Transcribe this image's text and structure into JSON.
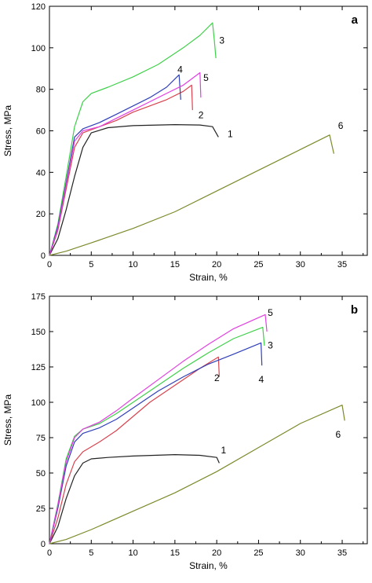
{
  "chart_data": [
    {
      "type": "line",
      "panel": "a",
      "xlabel": "Strain, %",
      "ylabel": "Stress, MPa",
      "xlim": [
        0,
        38
      ],
      "ylim": [
        0,
        120
      ],
      "xticks": [
        0,
        5,
        10,
        15,
        20,
        25,
        30,
        35
      ],
      "yticks": [
        0,
        20,
        40,
        60,
        80,
        100,
        120
      ],
      "grid": false,
      "series": [
        {
          "name": "1",
          "color": "#222222",
          "x": [
            0,
            1,
            2,
            3,
            4,
            5,
            7,
            10,
            15,
            18,
            19.5,
            20.2
          ],
          "y": [
            0,
            8,
            22,
            38,
            52,
            59,
            61.5,
            62.5,
            63,
            62.8,
            62,
            57
          ]
        },
        {
          "name": "2",
          "color": "#d8434f",
          "x": [
            0,
            1,
            2,
            3,
            4,
            6,
            8,
            10,
            12,
            14,
            16,
            17,
            17.1
          ],
          "y": [
            0,
            12,
            32,
            52,
            59,
            62,
            65,
            69,
            72,
            75,
            79,
            82,
            70
          ]
        },
        {
          "name": "3",
          "color": "#3fd04a",
          "x": [
            0,
            1,
            2,
            3,
            4,
            5,
            7,
            10,
            13,
            16,
            18,
            19.5,
            19.7,
            19.9
          ],
          "y": [
            0,
            15,
            38,
            62,
            74,
            78,
            81,
            86,
            92,
            100,
            106,
            112,
            104,
            95
          ]
        },
        {
          "name": "4",
          "color": "#2f3fb8",
          "x": [
            0,
            1,
            2,
            3,
            4,
            6,
            8,
            10,
            12,
            14,
            15.5,
            15.7
          ],
          "y": [
            0,
            14,
            35,
            57,
            61,
            64,
            68,
            72,
            76,
            81,
            87,
            75
          ]
        },
        {
          "name": "5",
          "color": "#e040e0",
          "x": [
            0,
            1,
            2,
            3,
            4,
            6,
            8,
            10,
            12,
            14,
            16,
            18,
            18.1
          ],
          "y": [
            0,
            13,
            34,
            55,
            60,
            62,
            66,
            70,
            74,
            78,
            82,
            88,
            76
          ]
        },
        {
          "name": "6",
          "color": "#7d8a2b",
          "x": [
            0,
            2,
            5,
            10,
            15,
            20,
            25,
            30,
            33.5,
            34
          ],
          "y": [
            0,
            2,
            6,
            13,
            21,
            31,
            41,
            51,
            58,
            49
          ]
        }
      ],
      "curve_labels": [
        {
          "text": "1",
          "x": 21.3,
          "y": 57
        },
        {
          "text": "2",
          "x": 17.8,
          "y": 66
        },
        {
          "text": "3",
          "x": 20.3,
          "y": 102
        },
        {
          "text": "4",
          "x": 15.3,
          "y": 88
        },
        {
          "text": "5",
          "x": 18.4,
          "y": 84
        },
        {
          "text": "6",
          "x": 34.5,
          "y": 61
        }
      ]
    },
    {
      "type": "line",
      "panel": "b",
      "xlabel": "Strain, %",
      "ylabel": "Stress, MPa",
      "xlim": [
        0,
        38
      ],
      "ylim": [
        0,
        175
      ],
      "xticks": [
        0,
        5,
        10,
        15,
        20,
        25,
        30,
        35
      ],
      "yticks": [
        0,
        25,
        50,
        75,
        100,
        125,
        150,
        175
      ],
      "grid": false,
      "series": [
        {
          "name": "1",
          "color": "#222222",
          "x": [
            0,
            1,
            2,
            3,
            4,
            5,
            7,
            10,
            15,
            18,
            20,
            20.3
          ],
          "y": [
            0,
            12,
            32,
            48,
            57,
            60,
            61,
            62,
            63,
            62.5,
            61,
            57
          ]
        },
        {
          "name": "2",
          "color": "#d8434f",
          "x": [
            0,
            1,
            2,
            3,
            4,
            6,
            8,
            10,
            12,
            15,
            18,
            20.2,
            20.3
          ],
          "y": [
            0,
            18,
            42,
            58,
            65,
            72,
            80,
            90,
            100,
            112,
            124,
            132,
            118
          ]
        },
        {
          "name": "3",
          "color": "#3fd04a",
          "x": [
            0,
            1,
            2,
            3,
            4,
            6,
            8,
            10,
            13,
            16,
            19,
            22,
            25.5,
            25.7
          ],
          "y": [
            0,
            28,
            60,
            76,
            81,
            85,
            92,
            100,
            112,
            124,
            135,
            145,
            153,
            140
          ]
        },
        {
          "name": "4",
          "color": "#2f3fb8",
          "x": [
            0,
            1,
            2,
            3,
            4,
            6,
            8,
            10,
            13,
            16,
            19,
            22,
            25.3,
            25.4
          ],
          "y": [
            0,
            25,
            55,
            72,
            78,
            82,
            88,
            96,
            108,
            118,
            127,
            134,
            142,
            126
          ]
        },
        {
          "name": "5",
          "color": "#e040e0",
          "x": [
            0,
            1,
            2,
            3,
            4,
            6,
            8,
            10,
            13,
            16,
            19,
            22,
            25.8,
            26
          ],
          "y": [
            0,
            27,
            58,
            75,
            81,
            86,
            94,
            103,
            116,
            129,
            141,
            152,
            162,
            150
          ]
        },
        {
          "name": "6",
          "color": "#7d8a2b",
          "x": [
            0,
            2,
            5,
            10,
            15,
            20,
            25,
            30,
            35,
            35.3
          ],
          "y": [
            0,
            3,
            10,
            23,
            36,
            51,
            68,
            85,
            98,
            87
          ]
        }
      ],
      "curve_labels": [
        {
          "text": "1",
          "x": 20.5,
          "y": 64
        },
        {
          "text": "2",
          "x": 19.7,
          "y": 115
        },
        {
          "text": "3",
          "x": 26.1,
          "y": 138
        },
        {
          "text": "4",
          "x": 25.0,
          "y": 114
        },
        {
          "text": "5",
          "x": 26.1,
          "y": 161
        },
        {
          "text": "6",
          "x": 34.2,
          "y": 75
        }
      ]
    }
  ],
  "panels": [
    {
      "letter": "a"
    },
    {
      "letter": "b"
    }
  ]
}
